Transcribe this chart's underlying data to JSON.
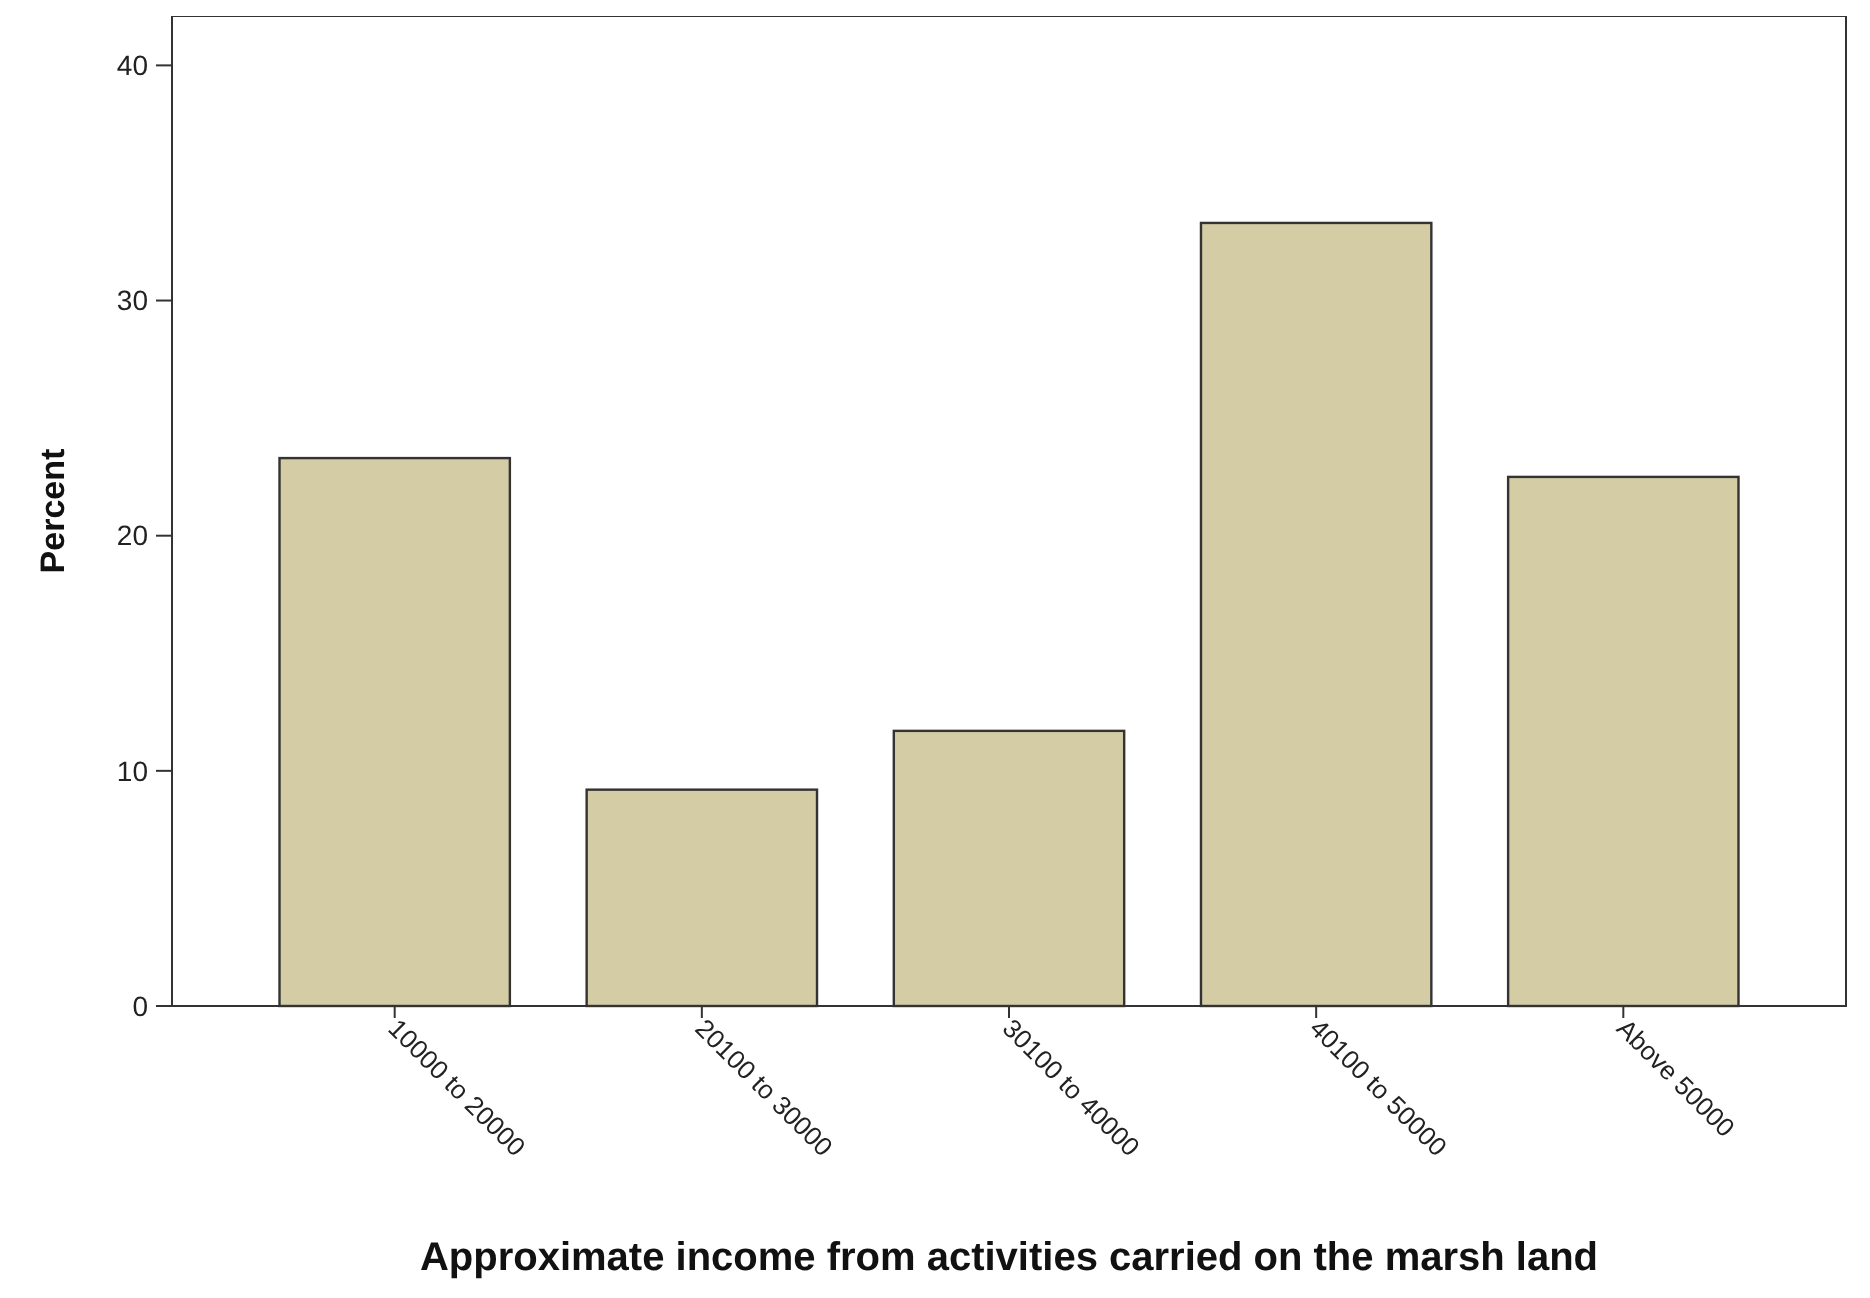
{
  "chart_data": {
    "type": "bar",
    "xlabel": "Approximate income from activities carried on the marsh land",
    "ylabel": "Percent",
    "categories": [
      "10000 to 20000",
      "20100 to 30000",
      "30100 to 40000",
      "40100 to 50000",
      "Above 50000"
    ],
    "values": [
      23.3,
      9.2,
      11.7,
      33.3,
      22.5
    ],
    "color": "#d4cca4",
    "ylim": [
      0,
      42.1
    ],
    "yticks": [
      0,
      10,
      20,
      30,
      40
    ],
    "grid": false
  }
}
